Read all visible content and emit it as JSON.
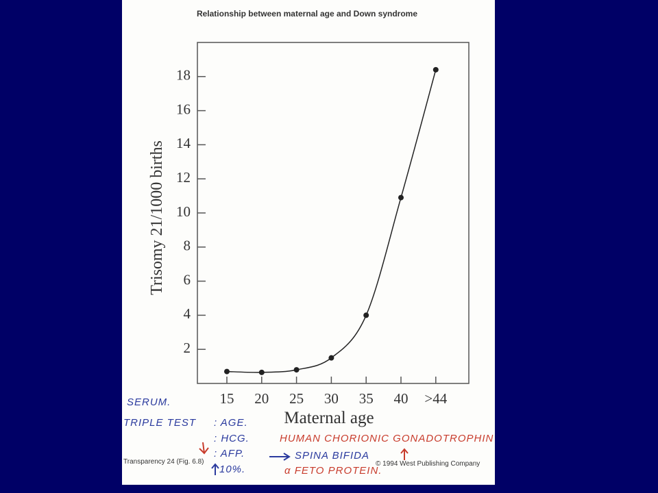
{
  "chart_data": {
    "type": "line",
    "title": "Relationship between maternal age and Down syndrome",
    "x_label": "Maternal age",
    "y_label": "Trisomy 21/1000 births",
    "categories": [
      "15",
      "20",
      "25",
      "30",
      "35",
      "40",
      ">44"
    ],
    "values": [
      0.7,
      0.65,
      0.8,
      1.5,
      4,
      10.9,
      18.4
    ],
    "color": "#222222",
    "ylim": [
      0,
      20
    ],
    "yticks": [
      2,
      4,
      6,
      8,
      10,
      12,
      14,
      16,
      18
    ]
  },
  "notes": {
    "serum": "SERUM.",
    "triple_test": "TRIPLE TEST",
    "age": ": AGE.",
    "hcg": ": HCG.",
    "afp": ": AFP.",
    "percent": "10%.",
    "spina_bifida": "SPINA BIFIDA",
    "hcg_full": "HUMAN CHORIONIC GONADOTROPHIN",
    "afp_full": "α FETO PROTEIN."
  },
  "footer": {
    "left": "Transparency 24 (Fig. 6.8)",
    "right": "© 1994 West Publishing Company"
  }
}
